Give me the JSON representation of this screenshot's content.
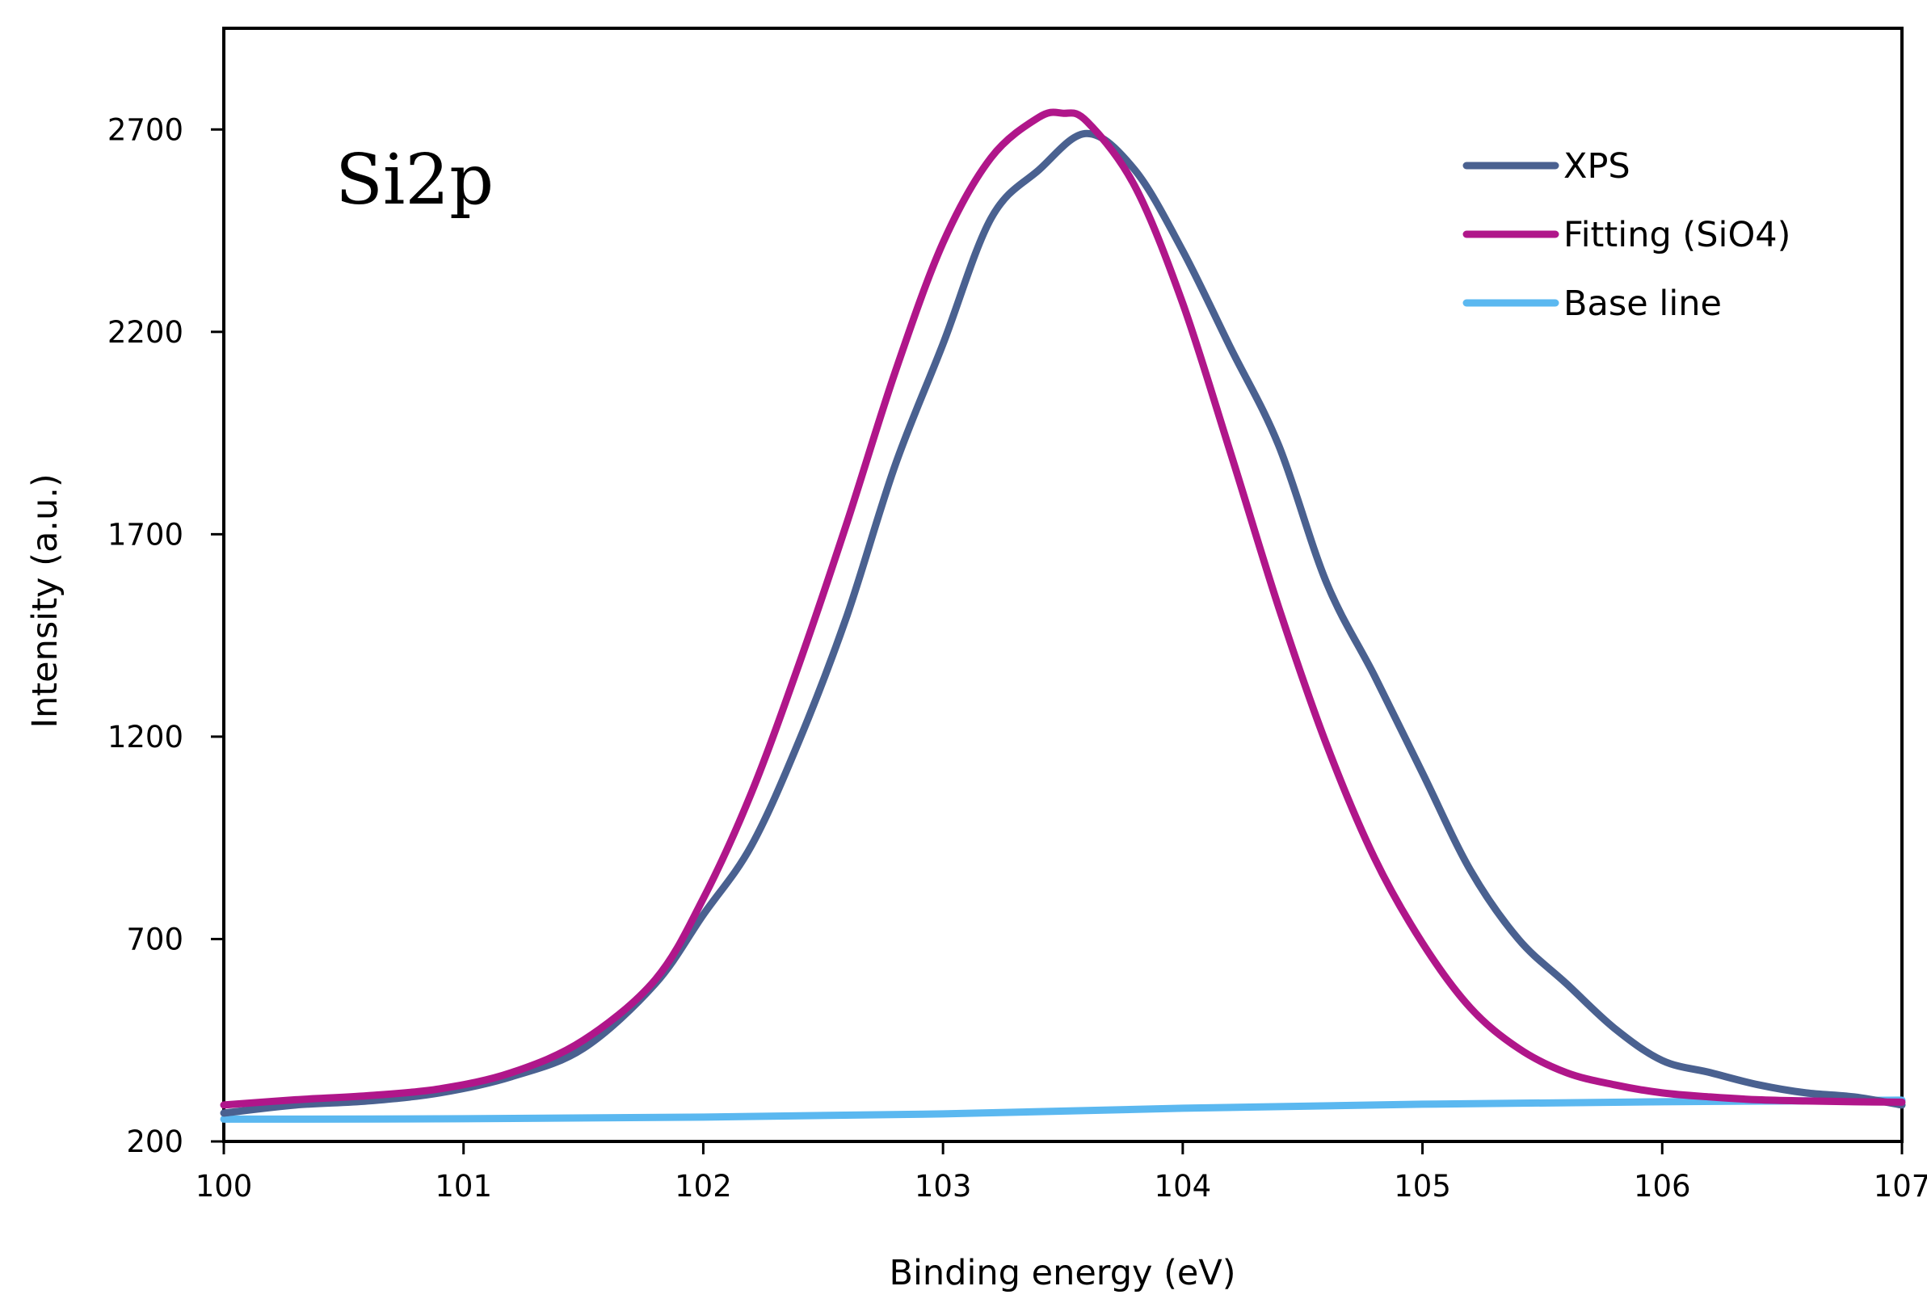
{
  "chart_data": {
    "type": "line",
    "annotation": "Si2p",
    "xlabel": "Binding energy (eV)",
    "ylabel": "Intensity (a.u.)",
    "xlim": [
      100,
      107
    ],
    "ylim": [
      200,
      2950
    ],
    "xticks": [
      100,
      101,
      102,
      103,
      104,
      105,
      106,
      107
    ],
    "xtick_labels": [
      "100",
      "101",
      "102",
      "103",
      "104",
      "105",
      "106",
      "107"
    ],
    "yticks": [
      200,
      700,
      1200,
      1700,
      2200,
      2700
    ],
    "ytick_labels": [
      "200",
      "700",
      "1200",
      "1700",
      "2200",
      "2700"
    ],
    "legend_position": "top-right",
    "series": [
      {
        "name": "XPS",
        "color": "#4a6190",
        "x": [
          100,
          100.3,
          100.6,
          100.9,
          101.2,
          101.5,
          101.8,
          102.0,
          102.2,
          102.4,
          102.6,
          102.8,
          103.0,
          103.2,
          103.4,
          103.6,
          103.8,
          104.0,
          104.2,
          104.4,
          104.6,
          104.8,
          105.0,
          105.2,
          105.4,
          105.6,
          105.8,
          106.0,
          106.2,
          106.4,
          106.6,
          106.8,
          107.0
        ],
        "values": [
          270,
          290,
          300,
          320,
          360,
          430,
          590,
          760,
          930,
          1190,
          1500,
          1870,
          2170,
          2480,
          2600,
          2690,
          2600,
          2400,
          2160,
          1920,
          1580,
          1350,
          1110,
          870,
          700,
          590,
          480,
          400,
          370,
          340,
          320,
          310,
          290
        ]
      },
      {
        "name": "Fitting (SiO4)",
        "color": "#b0168a",
        "x": [
          100,
          100.3,
          100.6,
          100.9,
          101.2,
          101.5,
          101.8,
          102.0,
          102.2,
          102.4,
          102.6,
          102.8,
          103.0,
          103.2,
          103.4,
          103.5,
          103.6,
          103.8,
          104.0,
          104.2,
          104.4,
          104.6,
          104.8,
          105.0,
          105.2,
          105.4,
          105.6,
          105.8,
          106.0,
          106.2,
          106.4,
          106.6,
          106.8,
          107.0
        ],
        "values": [
          290,
          303,
          313,
          330,
          370,
          450,
          600,
          800,
          1060,
          1380,
          1730,
          2100,
          2420,
          2630,
          2730,
          2740,
          2720,
          2560,
          2270,
          1900,
          1520,
          1180,
          900,
          690,
          530,
          430,
          370,
          340,
          320,
          310,
          303,
          300,
          298,
          297
        ]
      },
      {
        "name": "Base line",
        "color": "#5bb8f0",
        "x": [
          100,
          101,
          102,
          103,
          104,
          105,
          106,
          107
        ],
        "values": [
          255,
          256,
          260,
          268,
          282,
          292,
          298,
          302
        ]
      }
    ]
  }
}
